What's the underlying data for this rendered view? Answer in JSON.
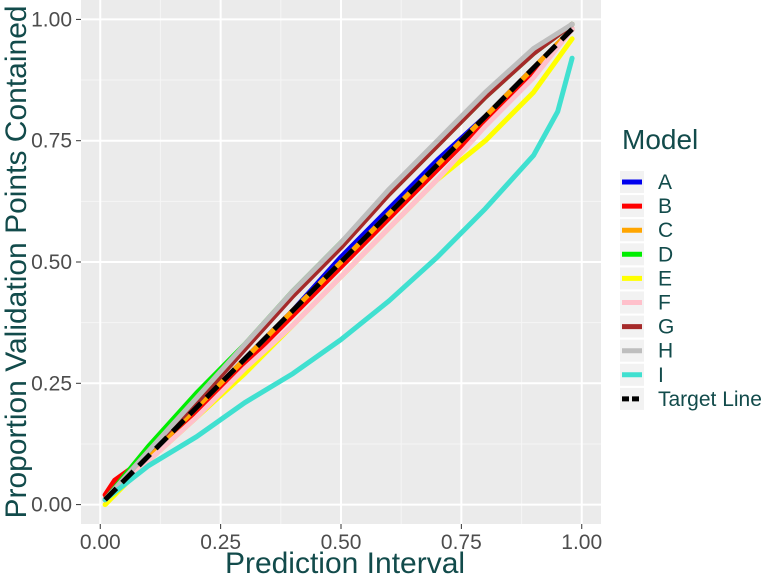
{
  "chart_data": {
    "type": "line",
    "xlabel": "Prediction Interval",
    "ylabel": "Proportion Validation Points Contained",
    "xlim": [
      -0.04,
      1.04
    ],
    "ylim": [
      -0.04,
      1.04
    ],
    "x_ticks": [
      "0.00",
      "0.25",
      "0.50",
      "0.75",
      "1.00"
    ],
    "y_ticks": [
      "0.00",
      "0.25",
      "0.50",
      "0.75",
      "1.00"
    ],
    "grid": true,
    "legend": {
      "title": "Model",
      "placement": "right"
    },
    "series": [
      {
        "name": "A",
        "color": "#0000ee",
        "x": [
          0.01,
          0.1,
          0.2,
          0.3,
          0.4,
          0.5,
          0.6,
          0.7,
          0.8,
          0.9,
          0.98
        ],
        "y": [
          0.01,
          0.1,
          0.2,
          0.3,
          0.4,
          0.51,
          0.61,
          0.71,
          0.8,
          0.9,
          0.98
        ]
      },
      {
        "name": "B",
        "color": "#ff0000",
        "x": [
          0.01,
          0.03,
          0.1,
          0.2,
          0.3,
          0.4,
          0.5,
          0.6,
          0.7,
          0.8,
          0.9,
          0.98
        ],
        "y": [
          0.02,
          0.05,
          0.1,
          0.19,
          0.29,
          0.39,
          0.49,
          0.59,
          0.69,
          0.79,
          0.89,
          0.98
        ]
      },
      {
        "name": "C",
        "color": "#ffa500",
        "x": [
          0.01,
          0.1,
          0.2,
          0.3,
          0.4,
          0.5,
          0.6,
          0.7,
          0.8,
          0.9,
          0.98
        ],
        "y": [
          0.01,
          0.1,
          0.2,
          0.3,
          0.4,
          0.5,
          0.6,
          0.7,
          0.8,
          0.9,
          0.98
        ]
      },
      {
        "name": "D",
        "color": "#00ee00",
        "x": [
          0.01,
          0.1,
          0.2,
          0.3,
          0.4,
          0.5,
          0.6,
          0.7,
          0.8,
          0.9,
          0.98
        ],
        "y": [
          0.01,
          0.12,
          0.23,
          0.33,
          0.44,
          0.54,
          0.64,
          0.74,
          0.84,
          0.93,
          0.99
        ]
      },
      {
        "name": "E",
        "color": "#ffff00",
        "x": [
          0.01,
          0.1,
          0.2,
          0.3,
          0.4,
          0.5,
          0.6,
          0.7,
          0.8,
          0.9,
          0.98
        ],
        "y": [
          0.0,
          0.09,
          0.18,
          0.27,
          0.37,
          0.47,
          0.57,
          0.67,
          0.75,
          0.85,
          0.96
        ]
      },
      {
        "name": "F",
        "color": "#ffc0cb",
        "x": [
          0.01,
          0.1,
          0.2,
          0.3,
          0.4,
          0.5,
          0.6,
          0.7,
          0.8,
          0.9,
          0.98
        ],
        "y": [
          0.01,
          0.09,
          0.18,
          0.28,
          0.37,
          0.47,
          0.57,
          0.67,
          0.78,
          0.88,
          0.98
        ]
      },
      {
        "name": "G",
        "color": "#a52a2a",
        "x": [
          0.01,
          0.1,
          0.2,
          0.3,
          0.4,
          0.5,
          0.6,
          0.7,
          0.8,
          0.9,
          0.98
        ],
        "y": [
          0.01,
          0.11,
          0.21,
          0.32,
          0.43,
          0.53,
          0.64,
          0.74,
          0.84,
          0.93,
          0.99
        ]
      },
      {
        "name": "H",
        "color": "#bebebe",
        "x": [
          0.01,
          0.1,
          0.2,
          0.3,
          0.4,
          0.5,
          0.6,
          0.7,
          0.8,
          0.9,
          0.98
        ],
        "y": [
          0.01,
          0.11,
          0.22,
          0.33,
          0.44,
          0.54,
          0.65,
          0.75,
          0.85,
          0.94,
          0.99
        ]
      },
      {
        "name": "I",
        "color": "#40e0d0",
        "x": [
          0.01,
          0.1,
          0.2,
          0.3,
          0.4,
          0.5,
          0.6,
          0.7,
          0.8,
          0.9,
          0.95,
          0.98
        ],
        "y": [
          0.01,
          0.08,
          0.14,
          0.21,
          0.27,
          0.34,
          0.42,
          0.51,
          0.61,
          0.72,
          0.81,
          0.92
        ]
      },
      {
        "name": "Target Line",
        "color": "#000000",
        "dashed": true,
        "x": [
          0.01,
          0.98
        ],
        "y": [
          0.01,
          0.98
        ]
      }
    ]
  }
}
